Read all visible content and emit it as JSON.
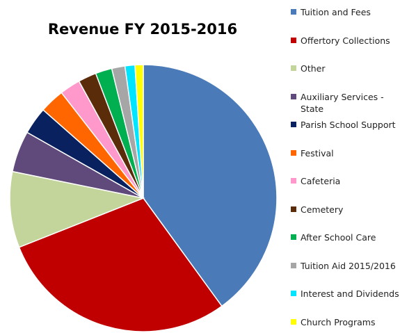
{
  "chart_data": {
    "type": "pie",
    "title": "Revenue FY 2015-2016",
    "categories": [
      "Tuition and Fees",
      "Offertory Collections",
      "Other",
      "Auxiliary Services - State",
      "Parish School Support",
      "Festival",
      "Cafeteria",
      "Cemetery",
      "After School Care",
      "Tuition Aid 2015/2016",
      "Interest and Dividends",
      "Church Programs"
    ],
    "values": [
      40,
      29,
      9.2,
      5,
      3.3,
      3,
      2.5,
      2.2,
      2,
      1.6,
      1.2,
      1
    ],
    "colors": [
      "#4a7ab8",
      "#c00000",
      "#c4d59b",
      "#604a7b",
      "#0a2160",
      "#ff6600",
      "#ff99cc",
      "#5a2c0a",
      "#00b050",
      "#a6a6a6",
      "#00e5ff",
      "#ffff00"
    ],
    "legend": "right"
  }
}
